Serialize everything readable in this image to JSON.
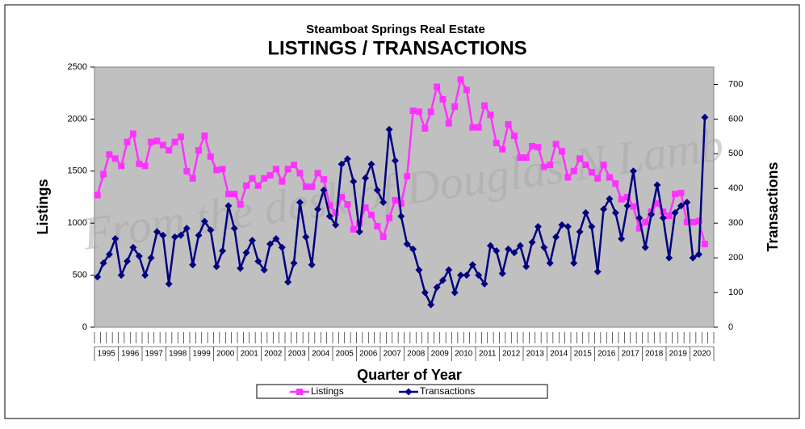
{
  "chart_data": {
    "type": "line",
    "subtitle": "Steamboat Springs Real Estate",
    "title": "LISTINGS / TRANSACTIONS",
    "x_label": "Quarter of Year",
    "y_label": "Listings",
    "y2_label": "Transactions",
    "watermark": "From the desk of Douglas N Lamb",
    "groups": [
      "1995",
      "1996",
      "1997",
      "1998",
      "1999",
      "2000",
      "2001",
      "2002",
      "2003",
      "2004",
      "2005",
      "2006",
      "2007",
      "2008",
      "2009",
      "2010",
      "2011",
      "2012",
      "2013",
      "2014",
      "2015",
      "2016",
      "2017",
      "2018",
      "2019",
      "2020"
    ],
    "periods_per_group": 4,
    "ylim": [
      0,
      2500
    ],
    "yticks": [
      0,
      500,
      1000,
      1500,
      2000,
      2500
    ],
    "y2lim": [
      0,
      750
    ],
    "y2ticks": [
      0,
      100,
      200,
      300,
      400,
      500,
      600,
      700
    ],
    "grid": false,
    "legend": "bottom",
    "series": [
      {
        "name": "Listings",
        "color": "#ff33ff",
        "marker": "square",
        "values": [
          1270,
          1470,
          1660,
          1620,
          1550,
          1780,
          1860,
          1570,
          1550,
          1780,
          1790,
          1750,
          1700,
          1780,
          1830,
          1500,
          1430,
          1700,
          1840,
          1640,
          1510,
          1520,
          1280,
          1280,
          1180,
          1360,
          1430,
          1360,
          1430,
          1460,
          1520,
          1400,
          1520,
          1560,
          1480,
          1350,
          1350,
          1480,
          1420,
          1170,
          1100,
          1250,
          1180,
          940,
          1000,
          1150,
          1080,
          970,
          870,
          1050,
          1220,
          1190,
          1450,
          2080,
          2070,
          1910,
          2070,
          2310,
          2190,
          1960,
          2120,
          2380,
          2280,
          1920,
          1920,
          2130,
          2040,
          1770,
          1710,
          1950,
          1840,
          1630,
          1630,
          1740,
          1730,
          1540,
          1560,
          1760,
          1690,
          1440,
          1500,
          1620,
          1560,
          1490,
          1430,
          1560,
          1440,
          1380,
          1230,
          1250,
          1160,
          950,
          1010,
          1110,
          1190,
          1110,
          1070,
          1280,
          1290,
          1010,
          1010,
          1020,
          800
        ]
      },
      {
        "name": "Transactions",
        "color": "#000080",
        "marker": "diamond",
        "axis": "y2",
        "values": [
          145,
          185,
          210,
          255,
          150,
          190,
          230,
          205,
          150,
          200,
          275,
          265,
          125,
          260,
          265,
          285,
          180,
          265,
          305,
          280,
          175,
          220,
          350,
          285,
          170,
          215,
          250,
          190,
          165,
          240,
          255,
          230,
          130,
          185,
          360,
          260,
          180,
          340,
          395,
          320,
          295,
          470,
          485,
          420,
          275,
          430,
          470,
          395,
          360,
          570,
          480,
          320,
          240,
          225,
          165,
          100,
          65,
          115,
          135,
          165,
          100,
          150,
          150,
          180,
          150,
          125,
          235,
          220,
          155,
          225,
          215,
          235,
          175,
          245,
          290,
          230,
          185,
          260,
          295,
          290,
          185,
          275,
          330,
          290,
          160,
          340,
          370,
          330,
          255,
          350,
          450,
          315,
          230,
          325,
          410,
          315,
          200,
          330,
          350,
          360,
          200,
          210,
          605
        ]
      }
    ]
  }
}
